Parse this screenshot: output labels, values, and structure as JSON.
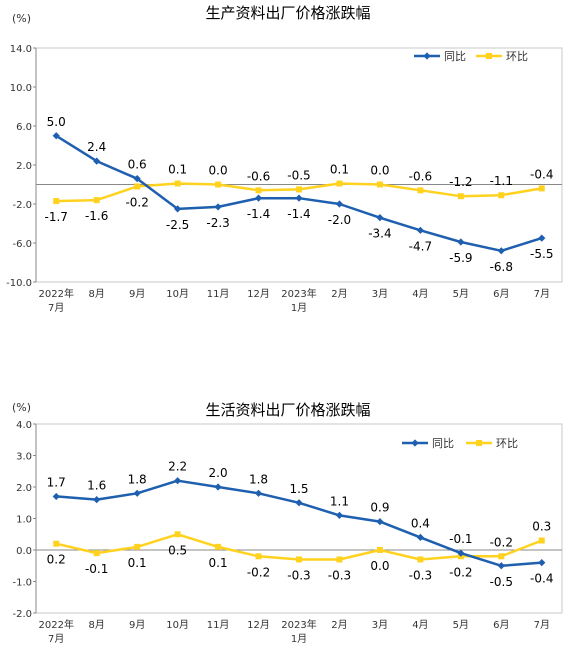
{
  "chart_data": [
    {
      "type": "line",
      "title": "生产资料出厂价格涨跌幅",
      "unit_label": "(%)",
      "ylim": [
        -10.0,
        14.0
      ],
      "yticks": [
        "14.0",
        "10.0",
        "6.0",
        "2.0",
        "-2.0",
        "-6.0",
        "-10.0"
      ],
      "categories": [
        [
          "2022年",
          "7月"
        ],
        [
          "8月"
        ],
        [
          "9月"
        ],
        [
          "10月"
        ],
        [
          "11月"
        ],
        [
          "12月"
        ],
        [
          "2023年",
          "1月"
        ],
        [
          "2月"
        ],
        [
          "3月"
        ],
        [
          "4月"
        ],
        [
          "5月"
        ],
        [
          "6月"
        ],
        [
          "7月"
        ]
      ],
      "legend_position": "top-right",
      "grid": false,
      "series": [
        {
          "name": "同比",
          "color": "#1F5FAF",
          "marker": "diamond",
          "values": [
            5.0,
            2.4,
            0.6,
            -2.5,
            -2.3,
            -1.4,
            -1.4,
            -2.0,
            -3.4,
            -4.7,
            -5.9,
            -6.8,
            -5.5
          ],
          "labels": [
            "5.0",
            "2.4",
            "0.6",
            "-2.5",
            "-2.3",
            "-1.4",
            "-1.4",
            "-2.0",
            "-3.4",
            "-4.7",
            "-5.9",
            "-6.8",
            "-5.5"
          ],
          "label_pos": [
            "above",
            "above",
            "above",
            "below",
            "below",
            "below",
            "below",
            "below",
            "below",
            "below",
            "below",
            "below",
            "below"
          ]
        },
        {
          "name": "环比",
          "color": "#FFD21F",
          "marker": "square",
          "values": [
            -1.7,
            -1.6,
            -0.2,
            0.1,
            0.0,
            -0.6,
            -0.5,
            0.1,
            0.0,
            -0.6,
            -1.2,
            -1.1,
            -0.4
          ],
          "labels": [
            "-1.7",
            "-1.6",
            "-0.2",
            "0.1",
            "0.0",
            "-0.6",
            "-0.5",
            "0.1",
            "0.0",
            "-0.6",
            "-1.2",
            "-1.1",
            "-0.4"
          ],
          "label_pos": [
            "below",
            "below",
            "below",
            "above",
            "above",
            "above",
            "above",
            "above",
            "above",
            "above",
            "above",
            "above",
            "above"
          ]
        }
      ]
    },
    {
      "type": "line",
      "title": "生活资料出厂价格涨跌幅",
      "unit_label": "(%)",
      "ylim": [
        -2.0,
        4.0
      ],
      "yticks": [
        "4.0",
        "3.0",
        "2.0",
        "1.0",
        "0.0",
        "-1.0",
        "-2.0"
      ],
      "categories": [
        [
          "2022年",
          "7月"
        ],
        [
          "8月"
        ],
        [
          "9月"
        ],
        [
          "10月"
        ],
        [
          "11月"
        ],
        [
          "12月"
        ],
        [
          "2023年",
          "1月"
        ],
        [
          "2月"
        ],
        [
          "3月"
        ],
        [
          "4月"
        ],
        [
          "5月"
        ],
        [
          "6月"
        ],
        [
          "7月"
        ]
      ],
      "legend_position": "top-right",
      "grid": false,
      "series": [
        {
          "name": "同比",
          "color": "#1F5FAF",
          "marker": "diamond",
          "values": [
            1.7,
            1.6,
            1.8,
            2.2,
            2.0,
            1.8,
            1.5,
            1.1,
            0.9,
            0.4,
            -0.1,
            -0.5,
            -0.4
          ],
          "labels": [
            "1.7",
            "1.6",
            "1.8",
            "2.2",
            "2.0",
            "1.8",
            "1.5",
            "1.1",
            "0.9",
            "0.4",
            "-0.1",
            "-0.5",
            "-0.4"
          ],
          "label_pos": [
            "above",
            "above",
            "above",
            "above",
            "above",
            "above",
            "above",
            "above",
            "above",
            "above",
            "above",
            "below",
            "below"
          ]
        },
        {
          "name": "环比",
          "color": "#FFD21F",
          "marker": "square",
          "values": [
            0.2,
            -0.1,
            0.1,
            0.5,
            0.1,
            -0.2,
            -0.3,
            -0.3,
            0.0,
            -0.3,
            -0.2,
            -0.2,
            0.3
          ],
          "labels": [
            "0.2",
            "-0.1",
            "0.1",
            "0.5",
            "0.1",
            "-0.2",
            "-0.3",
            "-0.3",
            "0.0",
            "-0.3",
            "-0.2",
            "-0.2",
            "0.3"
          ],
          "label_pos": [
            "below",
            "below",
            "below",
            "below",
            "below",
            "below",
            "below",
            "below",
            "below",
            "below",
            "below",
            "above",
            "above"
          ]
        }
      ]
    }
  ]
}
